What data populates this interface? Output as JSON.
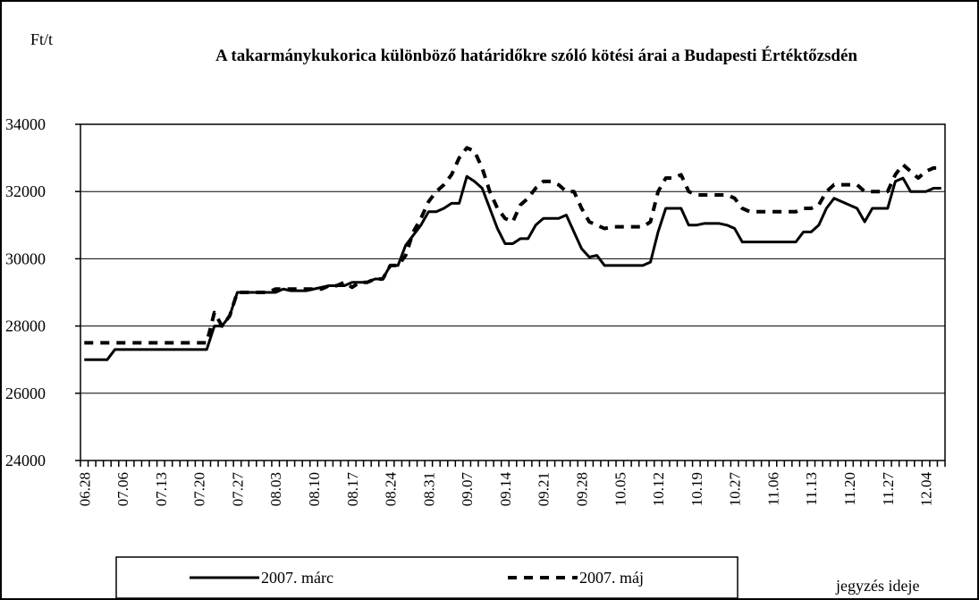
{
  "chart_data": {
    "type": "line",
    "title": "A takarmánykukorica különböző határidőkre szóló kötési árai a Budapesti Értéktőzsdén",
    "ylabel": "Ft/t",
    "xlabel": "jegyzés ideje",
    "ylim": [
      24000,
      34000
    ],
    "yticks": [
      24000,
      26000,
      28000,
      30000,
      32000,
      34000
    ],
    "grid": true,
    "categories": [
      "06.28",
      null,
      null,
      null,
      null,
      "07.06",
      null,
      null,
      null,
      null,
      "07.13",
      null,
      null,
      null,
      null,
      "07.20",
      null,
      null,
      null,
      null,
      "07.27",
      null,
      null,
      null,
      null,
      "08.03",
      null,
      null,
      null,
      null,
      "08.10",
      null,
      null,
      null,
      null,
      "08.17",
      null,
      null,
      null,
      null,
      "08.24",
      null,
      null,
      null,
      null,
      "08.31",
      null,
      null,
      null,
      null,
      "09.07",
      null,
      null,
      null,
      null,
      "09.14",
      null,
      null,
      null,
      null,
      "09.21",
      null,
      null,
      null,
      null,
      "09.28",
      null,
      null,
      null,
      null,
      "10.05",
      null,
      null,
      null,
      null,
      "10.12",
      null,
      null,
      null,
      null,
      "10.19",
      null,
      null,
      null,
      null,
      "10.27",
      null,
      null,
      null,
      null,
      "11.06",
      null,
      null,
      null,
      null,
      "11.13",
      null,
      null,
      null,
      null,
      "11.20",
      null,
      null,
      null,
      null,
      "11.27",
      null,
      null,
      null,
      null,
      "12.04",
      null,
      null
    ],
    "series": [
      {
        "name": "2007. márc",
        "color": "#000000",
        "dash": false,
        "values": [
          27000,
          27000,
          27000,
          27000,
          27300,
          27300,
          27300,
          27300,
          27300,
          27300,
          27300,
          27300,
          27300,
          27300,
          27300,
          27300,
          27300,
          28000,
          28000,
          28300,
          29000,
          29000,
          29000,
          29000,
          29000,
          29000,
          29100,
          29050,
          29050,
          29050,
          29100,
          29150,
          29200,
          29200,
          29200,
          29300,
          29300,
          29300,
          29400,
          29400,
          29800,
          29800,
          30400,
          30700,
          31000,
          31400,
          31400,
          31500,
          31650,
          31650,
          32450,
          32300,
          32100,
          31500,
          30900,
          30450,
          30450,
          30600,
          30600,
          31000,
          31200,
          31200,
          31200,
          31300,
          30800,
          30300,
          30050,
          30100,
          29800,
          29800,
          29800,
          29800,
          29800,
          29800,
          29900,
          30800,
          31500,
          31500,
          31500,
          31000,
          31000,
          31050,
          31050,
          31050,
          31000,
          30900,
          30500,
          30500,
          30500,
          30500,
          30500,
          30500,
          30500,
          30500,
          30800,
          30800,
          31000,
          31500,
          31800,
          31700,
          31600,
          31500,
          31100,
          31500,
          31500,
          31500,
          32300,
          32400,
          32000,
          32000,
          32000,
          32100,
          32100
        ]
      },
      {
        "name": "2007. máj",
        "color": "#000000",
        "dash": true,
        "values": [
          27500,
          27500,
          27500,
          27500,
          27500,
          27500,
          27500,
          27500,
          27500,
          27500,
          27500,
          27500,
          27500,
          27500,
          27500,
          27500,
          27500,
          28400,
          28000,
          28300,
          29000,
          29000,
          29000,
          29000,
          29000,
          29100,
          29100,
          29100,
          29100,
          29100,
          29100,
          29100,
          29200,
          29200,
          29300,
          29150,
          29300,
          29300,
          29400,
          29400,
          29800,
          29800,
          30100,
          30800,
          31200,
          31700,
          32000,
          32200,
          32500,
          33000,
          33300,
          33200,
          32700,
          32000,
          31500,
          31200,
          31100,
          31600,
          31800,
          32100,
          32300,
          32300,
          32200,
          32000,
          32000,
          31500,
          31100,
          31000,
          30900,
          30950,
          30950,
          30950,
          30950,
          30950,
          31100,
          32000,
          32400,
          32400,
          32500,
          32000,
          31900,
          31900,
          31900,
          31900,
          31900,
          31800,
          31500,
          31400,
          31400,
          31400,
          31400,
          31400,
          31400,
          31400,
          31500,
          31500,
          31600,
          32000,
          32200,
          32200,
          32200,
          32200,
          32000,
          32000,
          32000,
          32000,
          32500,
          32800,
          32600,
          32400,
          32600,
          32700,
          32700
        ]
      }
    ]
  }
}
